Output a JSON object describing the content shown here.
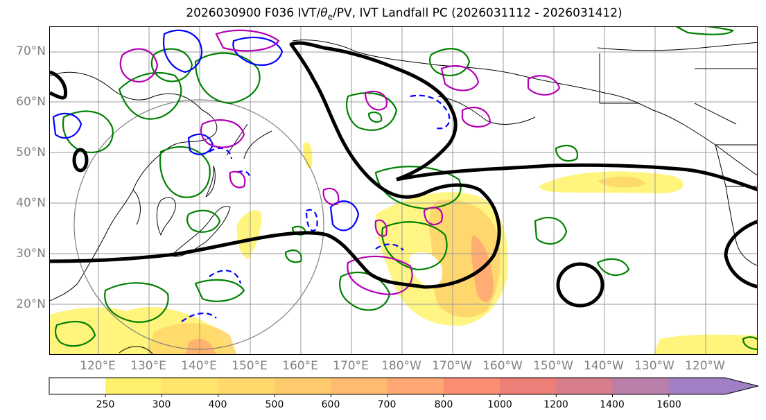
{
  "title": {
    "prefix": "2026030900 F036 IVT/",
    "theta": "θ",
    "theta_sub": "e",
    "suffix": "/PV, IVT Landfall PC (2026031112 - 2026031412)"
  },
  "axes": {
    "lat_labels": [
      "70°N",
      "60°N",
      "50°N",
      "40°N",
      "30°N",
      "20°N"
    ],
    "lon_labels": [
      "120°E",
      "130°E",
      "140°E",
      "150°E",
      "160°E",
      "170°E",
      "180°W",
      "170°W",
      "160°W",
      "150°W",
      "140°W",
      "130°W",
      "120°W"
    ]
  },
  "colorbar": {
    "ticks": [
      "250",
      "300",
      "400",
      "500",
      "600",
      "700",
      "800",
      "1000",
      "1200",
      "1400",
      "1600"
    ],
    "colors": [
      "#ffffff",
      "#fff06e",
      "#ffe56b",
      "#ffd96a",
      "#ffcb6c",
      "#ffbc70",
      "#ffa873",
      "#fb8e72",
      "#ee7e78",
      "#d77d8c",
      "#b87fa8",
      "#a07fc5"
    ]
  },
  "legend_colors": {
    "ivt_pc_contour": "#000000",
    "theta_e_contour": "#008000",
    "pv_positive": "#0000ff",
    "pv_anomaly": "#b400b4",
    "range_ring": "#808080"
  }
}
